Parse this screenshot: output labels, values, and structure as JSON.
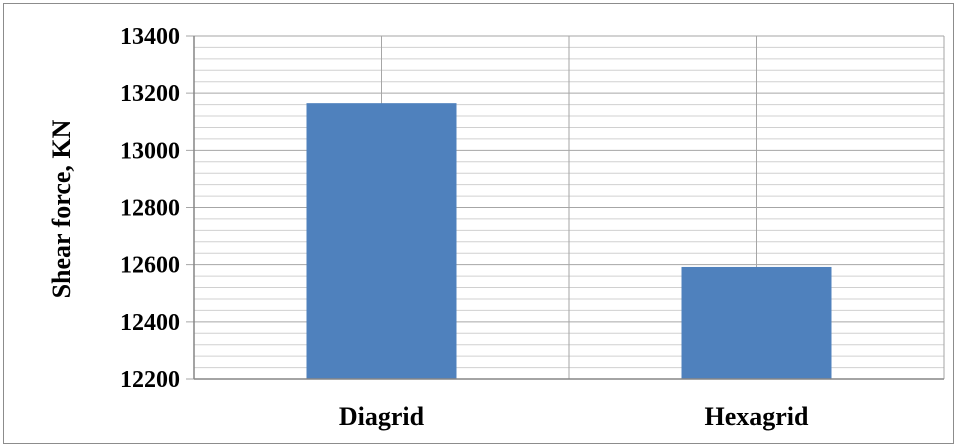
{
  "chart_data": {
    "type": "bar",
    "title": "",
    "xlabel": "",
    "ylabel": "Shear force, KN",
    "categories": [
      "Diagrid",
      "Hexagrid"
    ],
    "values": [
      13165,
      12592
    ],
    "ylim": [
      12200,
      13400
    ],
    "major_ticks": [
      12200,
      12400,
      12600,
      12800,
      13000,
      13200,
      13400
    ],
    "minor_step": 40,
    "grid": true,
    "legend": "none",
    "bar_color": "#4f81bd",
    "grid_color": "#a6a6a6",
    "minor_grid_color": "#d0d0d0"
  }
}
